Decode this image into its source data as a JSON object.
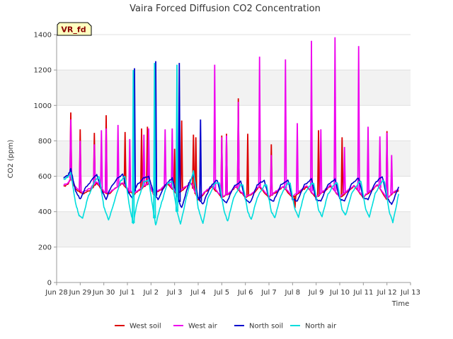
{
  "chart_data": {
    "type": "line",
    "title": "Vaira Forced Diffusion CO2 Concentration",
    "xlabel": "Time",
    "ylabel": "CO2 (ppm)",
    "ylim": [
      0,
      1400
    ],
    "yticks": [
      0,
      200,
      400,
      600,
      800,
      1000,
      1200,
      1400
    ],
    "xlim": [
      "2024-06-28",
      "2024-07-13"
    ],
    "xticks": [
      "Jun 28",
      "Jun 29",
      "Jun 30",
      "Jul 1",
      "Jul 2",
      "Jul 3",
      "Jul 4",
      "Jul 5",
      "Jul 6",
      "Jul 7",
      "Jul 8",
      "Jul 9",
      "Jul 10",
      "Jul 11",
      "Jul 12",
      "Jul 13"
    ],
    "site_badge": "VR_fd",
    "grid": "horizontal bands",
    "legend_position": "bottom",
    "time_unit": "days after Jun 28 00:00",
    "series": [
      {
        "name": "West soil",
        "color": "#dd0000",
        "baseline": [
          [
            0.3,
            540
          ],
          [
            0.5,
            560
          ],
          [
            0.6,
            590
          ],
          [
            0.8,
            530
          ],
          [
            1.1,
            500
          ],
          [
            1.4,
            520
          ],
          [
            1.7,
            560
          ],
          [
            2.0,
            510
          ],
          [
            2.2,
            500
          ],
          [
            2.5,
            530
          ],
          [
            2.8,
            560
          ],
          [
            3.1,
            510
          ],
          [
            3.3,
            500
          ],
          [
            3.6,
            530
          ],
          [
            3.9,
            560
          ],
          [
            4.1,
            500
          ],
          [
            4.4,
            520
          ],
          [
            4.7,
            560
          ],
          [
            5.1,
            500
          ],
          [
            5.4,
            530
          ],
          [
            5.7,
            560
          ],
          [
            6.0,
            470
          ],
          [
            6.3,
            510
          ],
          [
            6.6,
            540
          ],
          [
            7.0,
            480
          ],
          [
            7.3,
            500
          ],
          [
            7.6,
            540
          ],
          [
            8.0,
            480
          ],
          [
            8.3,
            500
          ],
          [
            8.6,
            540
          ],
          [
            9.0,
            480
          ],
          [
            9.3,
            510
          ],
          [
            9.6,
            540
          ],
          [
            10.0,
            480
          ],
          [
            10.3,
            510
          ],
          [
            10.6,
            540
          ],
          [
            11.0,
            480
          ],
          [
            11.3,
            510
          ],
          [
            11.6,
            545
          ],
          [
            12.0,
            480
          ],
          [
            12.3,
            510
          ],
          [
            12.6,
            545
          ],
          [
            13.0,
            480
          ],
          [
            13.3,
            515
          ],
          [
            13.6,
            550
          ],
          [
            14.0,
            470
          ],
          [
            14.3,
            510
          ],
          [
            14.5,
            520
          ]
        ],
        "spikes": [
          [
            0.6,
            960
          ],
          [
            1.0,
            865
          ],
          [
            1.6,
            845
          ],
          [
            2.1,
            945
          ],
          [
            2.9,
            850
          ],
          [
            3.6,
            870
          ],
          [
            3.85,
            880
          ],
          [
            4.2,
            880
          ],
          [
            5.0,
            755
          ],
          [
            5.3,
            915
          ],
          [
            5.8,
            835
          ],
          [
            5.9,
            820
          ],
          [
            7.0,
            830
          ],
          [
            7.2,
            840
          ],
          [
            7.7,
            1040
          ],
          [
            8.1,
            840
          ],
          [
            9.1,
            780
          ],
          [
            10.1,
            420
          ],
          [
            11.1,
            860
          ],
          [
            12.1,
            820
          ],
          [
            14.0,
            855
          ]
        ]
      },
      {
        "name": "West air",
        "color": "#ee00ee",
        "baseline": [
          [
            0.3,
            550
          ],
          [
            0.5,
            565
          ],
          [
            0.6,
            590
          ],
          [
            0.8,
            540
          ],
          [
            1.1,
            510
          ],
          [
            1.4,
            530
          ],
          [
            1.7,
            570
          ],
          [
            2.0,
            515
          ],
          [
            2.2,
            505
          ],
          [
            2.5,
            535
          ],
          [
            2.8,
            565
          ],
          [
            3.1,
            515
          ],
          [
            3.3,
            505
          ],
          [
            3.6,
            535
          ],
          [
            3.9,
            565
          ],
          [
            4.1,
            505
          ],
          [
            4.4,
            525
          ],
          [
            4.7,
            565
          ],
          [
            5.1,
            505
          ],
          [
            5.4,
            535
          ],
          [
            5.7,
            565
          ],
          [
            6.0,
            475
          ],
          [
            6.3,
            515
          ],
          [
            6.6,
            545
          ],
          [
            7.0,
            485
          ],
          [
            7.3,
            505
          ],
          [
            7.6,
            545
          ],
          [
            8.0,
            485
          ],
          [
            8.3,
            505
          ],
          [
            8.6,
            545
          ],
          [
            9.0,
            485
          ],
          [
            9.3,
            515
          ],
          [
            9.6,
            545
          ],
          [
            10.0,
            485
          ],
          [
            10.3,
            515
          ],
          [
            10.6,
            545
          ],
          [
            11.0,
            485
          ],
          [
            11.3,
            515
          ],
          [
            11.6,
            550
          ],
          [
            12.0,
            485
          ],
          [
            12.3,
            515
          ],
          [
            12.6,
            550
          ],
          [
            13.0,
            485
          ],
          [
            13.3,
            520
          ],
          [
            13.6,
            555
          ],
          [
            14.0,
            475
          ],
          [
            14.3,
            515
          ],
          [
            14.5,
            525
          ]
        ],
        "spikes": [
          [
            0.6,
            920
          ],
          [
            1.0,
            800
          ],
          [
            1.6,
            780
          ],
          [
            1.9,
            860
          ],
          [
            2.1,
            870
          ],
          [
            2.6,
            890
          ],
          [
            3.1,
            810
          ],
          [
            3.7,
            835
          ],
          [
            3.9,
            870
          ],
          [
            4.2,
            905
          ],
          [
            4.6,
            865
          ],
          [
            4.9,
            870
          ],
          [
            5.1,
            760
          ],
          [
            6.7,
            1230
          ],
          [
            7.0,
            820
          ],
          [
            7.2,
            830
          ],
          [
            7.7,
            1020
          ],
          [
            8.6,
            1275
          ],
          [
            9.1,
            720
          ],
          [
            9.7,
            1260
          ],
          [
            10.2,
            900
          ],
          [
            10.8,
            1365
          ],
          [
            11.2,
            865
          ],
          [
            11.8,
            1385
          ],
          [
            12.2,
            765
          ],
          [
            12.8,
            1335
          ],
          [
            13.2,
            880
          ],
          [
            13.7,
            825
          ],
          [
            14.0,
            845
          ],
          [
            14.2,
            720
          ]
        ]
      },
      {
        "name": "North soil",
        "color": "#0000cc",
        "baseline": [
          [
            0.3,
            590
          ],
          [
            0.5,
            610
          ],
          [
            0.6,
            640
          ],
          [
            0.8,
            520
          ],
          [
            1.0,
            470
          ],
          [
            1.2,
            530
          ],
          [
            1.5,
            580
          ],
          [
            1.7,
            610
          ],
          [
            1.9,
            520
          ],
          [
            2.1,
            470
          ],
          [
            2.3,
            540
          ],
          [
            2.6,
            590
          ],
          [
            2.8,
            610
          ],
          [
            3.0,
            520
          ],
          [
            3.2,
            480
          ],
          [
            3.4,
            550
          ],
          [
            3.7,
            590
          ],
          [
            3.9,
            600
          ],
          [
            4.1,
            510
          ],
          [
            4.3,
            470
          ],
          [
            4.6,
            550
          ],
          [
            4.9,
            590
          ],
          [
            5.1,
            490
          ],
          [
            5.3,
            420
          ],
          [
            5.6,
            560
          ],
          [
            5.8,
            610
          ],
          [
            6.0,
            480
          ],
          [
            6.2,
            440
          ],
          [
            6.5,
            540
          ],
          [
            6.8,
            580
          ],
          [
            7.0,
            470
          ],
          [
            7.2,
            450
          ],
          [
            7.5,
            540
          ],
          [
            7.8,
            570
          ],
          [
            8.0,
            470
          ],
          [
            8.2,
            450
          ],
          [
            8.5,
            550
          ],
          [
            8.8,
            580
          ],
          [
            9.0,
            470
          ],
          [
            9.2,
            460
          ],
          [
            9.5,
            550
          ],
          [
            9.8,
            580
          ],
          [
            10.0,
            470
          ],
          [
            10.2,
            460
          ],
          [
            10.5,
            550
          ],
          [
            10.8,
            585
          ],
          [
            11.0,
            470
          ],
          [
            11.2,
            460
          ],
          [
            11.5,
            555
          ],
          [
            11.8,
            585
          ],
          [
            12.0,
            470
          ],
          [
            12.2,
            460
          ],
          [
            12.5,
            555
          ],
          [
            12.8,
            590
          ],
          [
            13.0,
            475
          ],
          [
            13.2,
            470
          ],
          [
            13.5,
            560
          ],
          [
            13.8,
            600
          ],
          [
            14.0,
            480
          ],
          [
            14.2,
            440
          ],
          [
            14.5,
            540
          ]
        ],
        "spikes": [
          [
            3.3,
            1210
          ],
          [
            4.2,
            1250
          ],
          [
            5.2,
            1240
          ],
          [
            6.1,
            920
          ]
        ]
      },
      {
        "name": "North air",
        "color": "#00dddd",
        "baseline": [
          [
            0.3,
            580
          ],
          [
            0.5,
            600
          ],
          [
            0.6,
            620
          ],
          [
            0.8,
            450
          ],
          [
            0.95,
            380
          ],
          [
            1.1,
            360
          ],
          [
            1.3,
            470
          ],
          [
            1.6,
            570
          ],
          [
            1.8,
            600
          ],
          [
            2.0,
            430
          ],
          [
            2.2,
            350
          ],
          [
            2.4,
            440
          ],
          [
            2.7,
            570
          ],
          [
            2.9,
            600
          ],
          [
            3.1,
            420
          ],
          [
            3.25,
            335
          ],
          [
            3.4,
            440
          ],
          [
            3.7,
            570
          ],
          [
            3.9,
            580
          ],
          [
            4.1,
            400
          ],
          [
            4.2,
            325
          ],
          [
            4.4,
            430
          ],
          [
            4.7,
            560
          ],
          [
            4.9,
            570
          ],
          [
            5.1,
            400
          ],
          [
            5.25,
            330
          ],
          [
            5.5,
            480
          ],
          [
            5.8,
            630
          ],
          [
            6.0,
            420
          ],
          [
            6.2,
            335
          ],
          [
            6.4,
            470
          ],
          [
            6.7,
            560
          ],
          [
            6.9,
            560
          ],
          [
            7.1,
            400
          ],
          [
            7.25,
            345
          ],
          [
            7.5,
            480
          ],
          [
            7.8,
            550
          ],
          [
            7.9,
            550
          ],
          [
            8.1,
            400
          ],
          [
            8.25,
            355
          ],
          [
            8.5,
            480
          ],
          [
            8.8,
            550
          ],
          [
            8.9,
            550
          ],
          [
            9.1,
            400
          ],
          [
            9.25,
            365
          ],
          [
            9.5,
            490
          ],
          [
            9.8,
            560
          ],
          [
            9.9,
            560
          ],
          [
            10.1,
            410
          ],
          [
            10.25,
            370
          ],
          [
            10.5,
            500
          ],
          [
            10.8,
            560
          ],
          [
            10.9,
            560
          ],
          [
            11.1,
            410
          ],
          [
            11.25,
            375
          ],
          [
            11.5,
            500
          ],
          [
            11.8,
            560
          ],
          [
            11.9,
            560
          ],
          [
            12.1,
            410
          ],
          [
            12.25,
            380
          ],
          [
            12.5,
            500
          ],
          [
            12.8,
            565
          ],
          [
            12.9,
            570
          ],
          [
            13.1,
            410
          ],
          [
            13.25,
            370
          ],
          [
            13.5,
            500
          ],
          [
            13.8,
            575
          ],
          [
            13.9,
            570
          ],
          [
            14.1,
            400
          ],
          [
            14.25,
            340
          ],
          [
            14.5,
            500
          ]
        ],
        "spikes": [
          [
            3.25,
            1200
          ],
          [
            4.15,
            1240
          ],
          [
            5.1,
            1230
          ]
        ]
      }
    ]
  }
}
